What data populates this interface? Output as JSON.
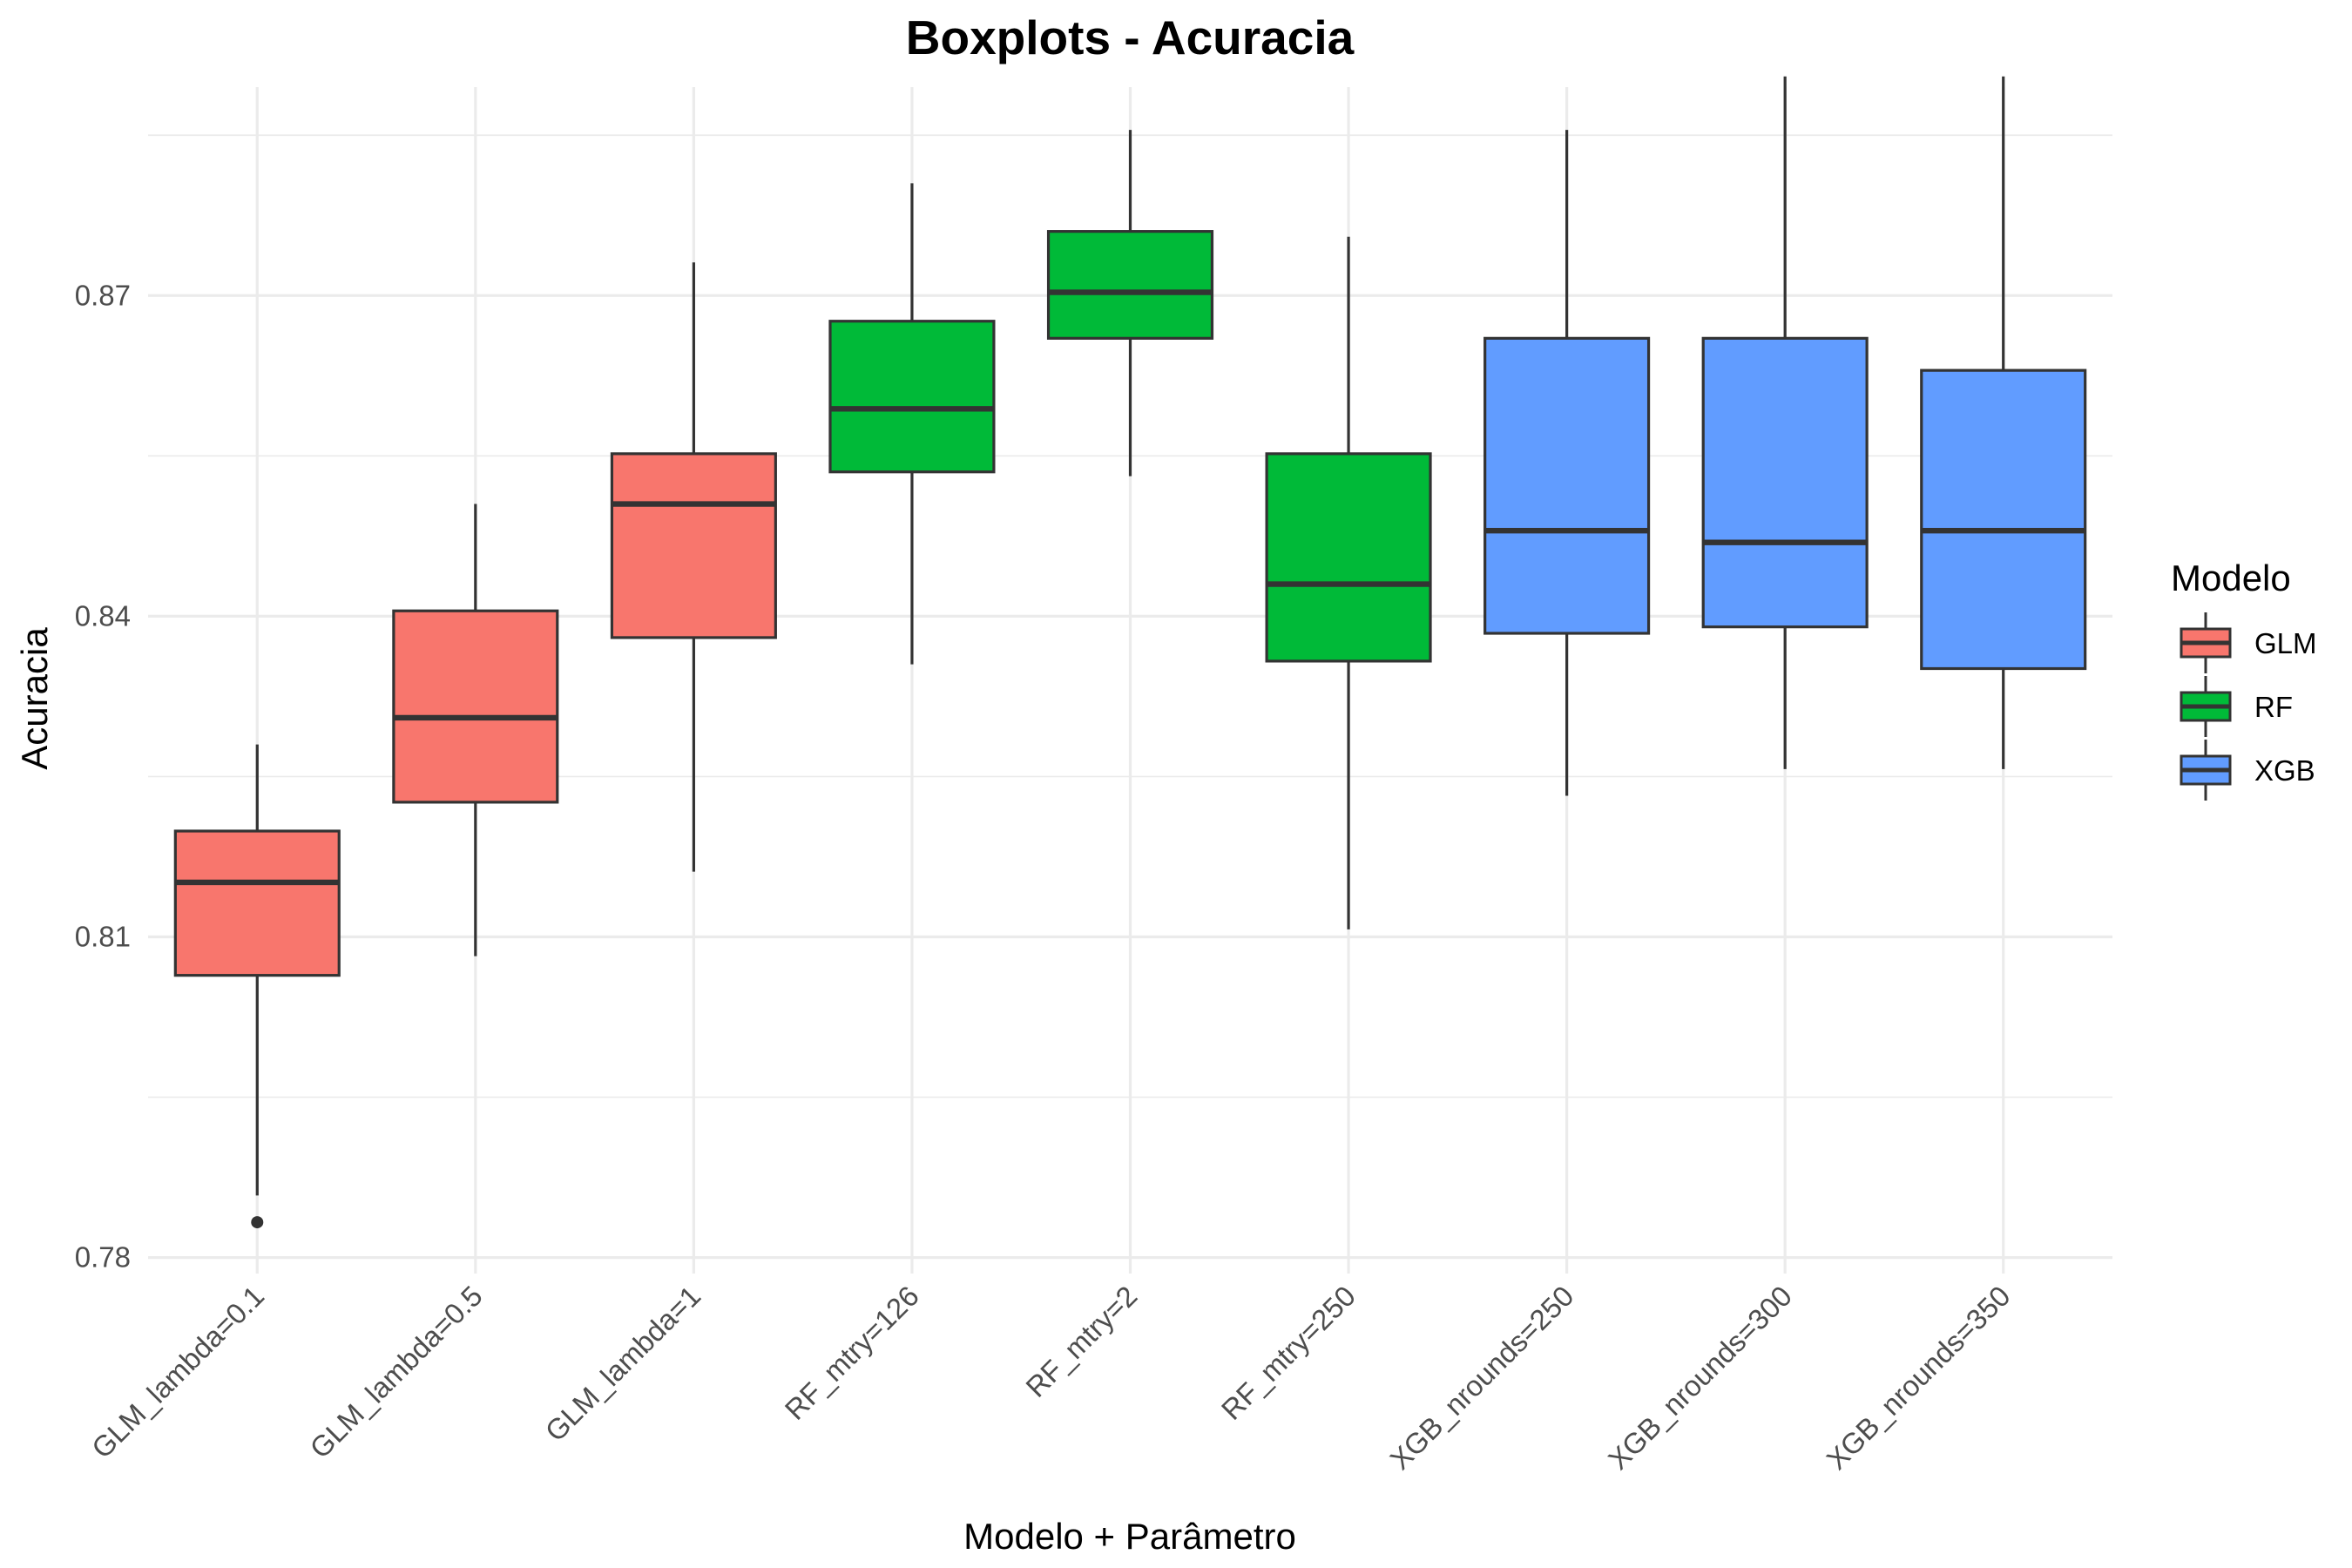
{
  "chart_data": {
    "type": "boxplot",
    "title": "Boxplots - Acuracia",
    "xlabel": "Modelo + Parâmetro",
    "ylabel": "Acuracia",
    "ylim": [
      0.7785,
      0.8895
    ],
    "yticks": [
      0.78,
      0.81,
      0.84,
      0.87
    ],
    "ytick_labels": [
      "0.78",
      "0.81",
      "0.84",
      "0.87"
    ],
    "grid": true,
    "legend": {
      "title": "Modelo",
      "position": "right",
      "entries": [
        {
          "label": "GLM",
          "color": "#F8766D"
        },
        {
          "label": "RF",
          "color": "#00BA38"
        },
        {
          "label": "XGB",
          "color": "#619CFF"
        }
      ]
    },
    "categories": [
      "GLM_lambda=0.1",
      "GLM_lambda=0.5",
      "GLM_lambda=1",
      "RF_mtry=126",
      "RF_mtry=2",
      "RF_mtry=250",
      "XGB_nrounds=250",
      "XGB_nrounds=300",
      "XGB_nrounds=350"
    ],
    "boxes": [
      {
        "category": "GLM_lambda=0.1",
        "group": "GLM",
        "whisker_low": 0.7858,
        "q1": 0.8064,
        "median": 0.8151,
        "q3": 0.8199,
        "whisker_high": 0.828,
        "outliers": [
          0.7833
        ]
      },
      {
        "category": "GLM_lambda=0.5",
        "group": "GLM",
        "whisker_low": 0.8082,
        "q1": 0.8226,
        "median": 0.8305,
        "q3": 0.8405,
        "whisker_high": 0.8505,
        "outliers": []
      },
      {
        "category": "GLM_lambda=1",
        "group": "GLM",
        "whisker_low": 0.8161,
        "q1": 0.838,
        "median": 0.8505,
        "q3": 0.8552,
        "whisker_high": 0.8731,
        "outliers": []
      },
      {
        "category": "RF_mtry=126",
        "group": "RF",
        "whisker_low": 0.8355,
        "q1": 0.8535,
        "median": 0.8594,
        "q3": 0.8676,
        "whisker_high": 0.8805,
        "outliers": []
      },
      {
        "category": "RF_mtry=2",
        "group": "RF",
        "whisker_low": 0.8531,
        "q1": 0.866,
        "median": 0.8703,
        "q3": 0.876,
        "whisker_high": 0.8855,
        "outliers": []
      },
      {
        "category": "RF_mtry=250",
        "group": "RF",
        "whisker_low": 0.8107,
        "q1": 0.8358,
        "median": 0.843,
        "q3": 0.8552,
        "whisker_high": 0.8755,
        "outliers": []
      },
      {
        "category": "XGB_nrounds=250",
        "group": "XGB",
        "whisker_low": 0.8232,
        "q1": 0.8384,
        "median": 0.848,
        "q3": 0.866,
        "whisker_high": 0.8855,
        "outliers": []
      },
      {
        "category": "XGB_nrounds=300",
        "group": "XGB",
        "whisker_low": 0.8257,
        "q1": 0.839,
        "median": 0.8469,
        "q3": 0.866,
        "whisker_high": 0.8905,
        "outliers": []
      },
      {
        "category": "XGB_nrounds=350",
        "group": "XGB",
        "whisker_low": 0.8257,
        "q1": 0.8351,
        "median": 0.848,
        "q3": 0.863,
        "whisker_high": 0.8905,
        "outliers": []
      }
    ]
  }
}
